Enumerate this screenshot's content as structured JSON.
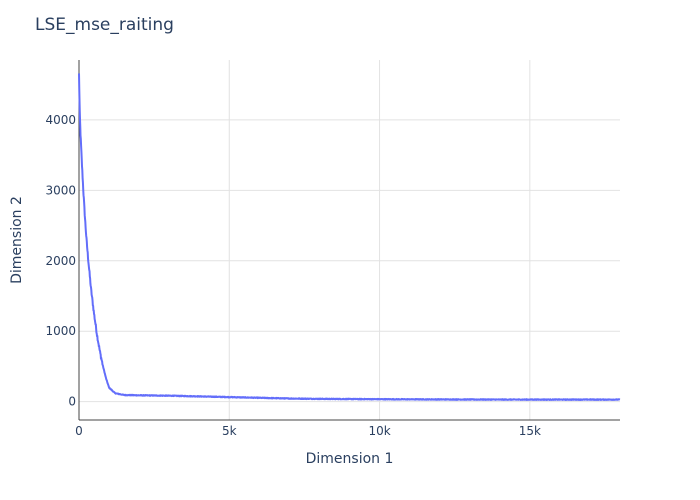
{
  "chart_data": {
    "type": "line",
    "title": "LSE_mse_raiting",
    "xlabel": "Dimension 1",
    "ylabel": "Dimension 2",
    "xlim": [
      0,
      18000
    ],
    "ylim": [
      -260,
      4850
    ],
    "x_ticks": [
      {
        "value": 0,
        "label": "0"
      },
      {
        "value": 5000,
        "label": "5k"
      },
      {
        "value": 10000,
        "label": "10k"
      },
      {
        "value": 15000,
        "label": "15k"
      }
    ],
    "y_ticks": [
      {
        "value": 0,
        "label": "0"
      },
      {
        "value": 1000,
        "label": "1000"
      },
      {
        "value": 2000,
        "label": "2000"
      },
      {
        "value": 3000,
        "label": "3000"
      },
      {
        "value": 4000,
        "label": "4000"
      }
    ],
    "grid": true,
    "series": [
      {
        "name": "LSE_mse_raiting",
        "color": "#636efa",
        "x": [
          0,
          25,
          50,
          100,
          150,
          200,
          250,
          300,
          400,
          500,
          600,
          700,
          800,
          900,
          1000,
          1200,
          1500,
          2000,
          3000,
          4000,
          5000,
          6000,
          7000,
          8000,
          10000,
          12000,
          14000,
          16000,
          18000
        ],
        "y": [
          4650,
          4100,
          3800,
          3350,
          2950,
          2600,
          2300,
          2050,
          1600,
          1250,
          950,
          700,
          500,
          330,
          200,
          120,
          95,
          90,
          85,
          75,
          65,
          55,
          45,
          40,
          35,
          32,
          30,
          30,
          30
        ]
      }
    ]
  }
}
